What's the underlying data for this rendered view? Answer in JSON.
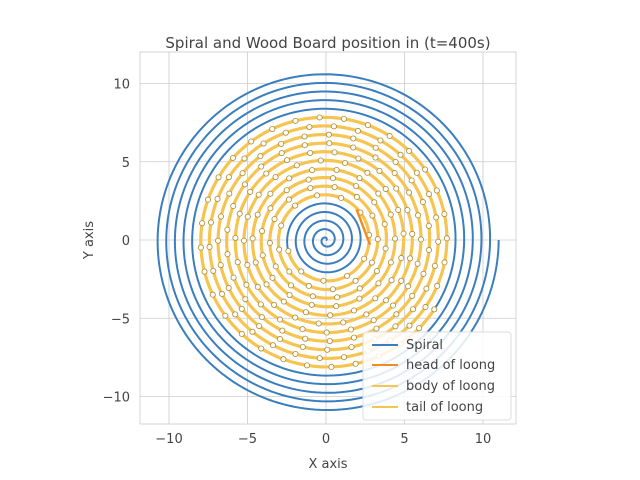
{
  "chart_data": {
    "type": "line",
    "title": "Spiral and Wood Board position in (t=400s)",
    "xlabel": "X axis",
    "ylabel": "Y axis",
    "xlim": [
      -11.75,
      11.75
    ],
    "ylim": [
      -12.2,
      12.2
    ],
    "xticks": [
      -10,
      -5,
      0,
      5,
      10
    ],
    "yticks": [
      -10,
      -5,
      0,
      5,
      10
    ],
    "xtick_labels": [
      "−10",
      "−5",
      "0",
      "5",
      "10"
    ],
    "ytick_labels": [
      "−10",
      "−5",
      "0",
      "5",
      "10"
    ],
    "grid": true,
    "legend_position": "lower-right",
    "spiral": {
      "description_pitch": 0.55,
      "start_point": [
        11.0,
        0.0
      ],
      "end_point": [
        0.0,
        0.0
      ],
      "color": "#3a7ebf"
    },
    "board": {
      "outer_point": [
        8.2,
        0.0
      ],
      "inner_point": [
        2.5,
        0.0
      ],
      "head_segment": [
        [
          1.95,
          1.95
        ],
        [
          2.8,
          -0.3
        ]
      ],
      "node_count": 224,
      "body_color": "#f5c451",
      "head_color": "#f28c1e",
      "tail_color": "#f5c451",
      "node_fill": "#ffffff",
      "node_stroke": "#b08a2a"
    },
    "series": [
      {
        "name": "Spiral",
        "color": "#3a7ebf"
      },
      {
        "name": "head of loong",
        "color": "#f28c1e"
      },
      {
        "name": "body of loong",
        "color": "#f5c451"
      },
      {
        "name": "tail of loong",
        "color": "#f5c451"
      }
    ]
  }
}
